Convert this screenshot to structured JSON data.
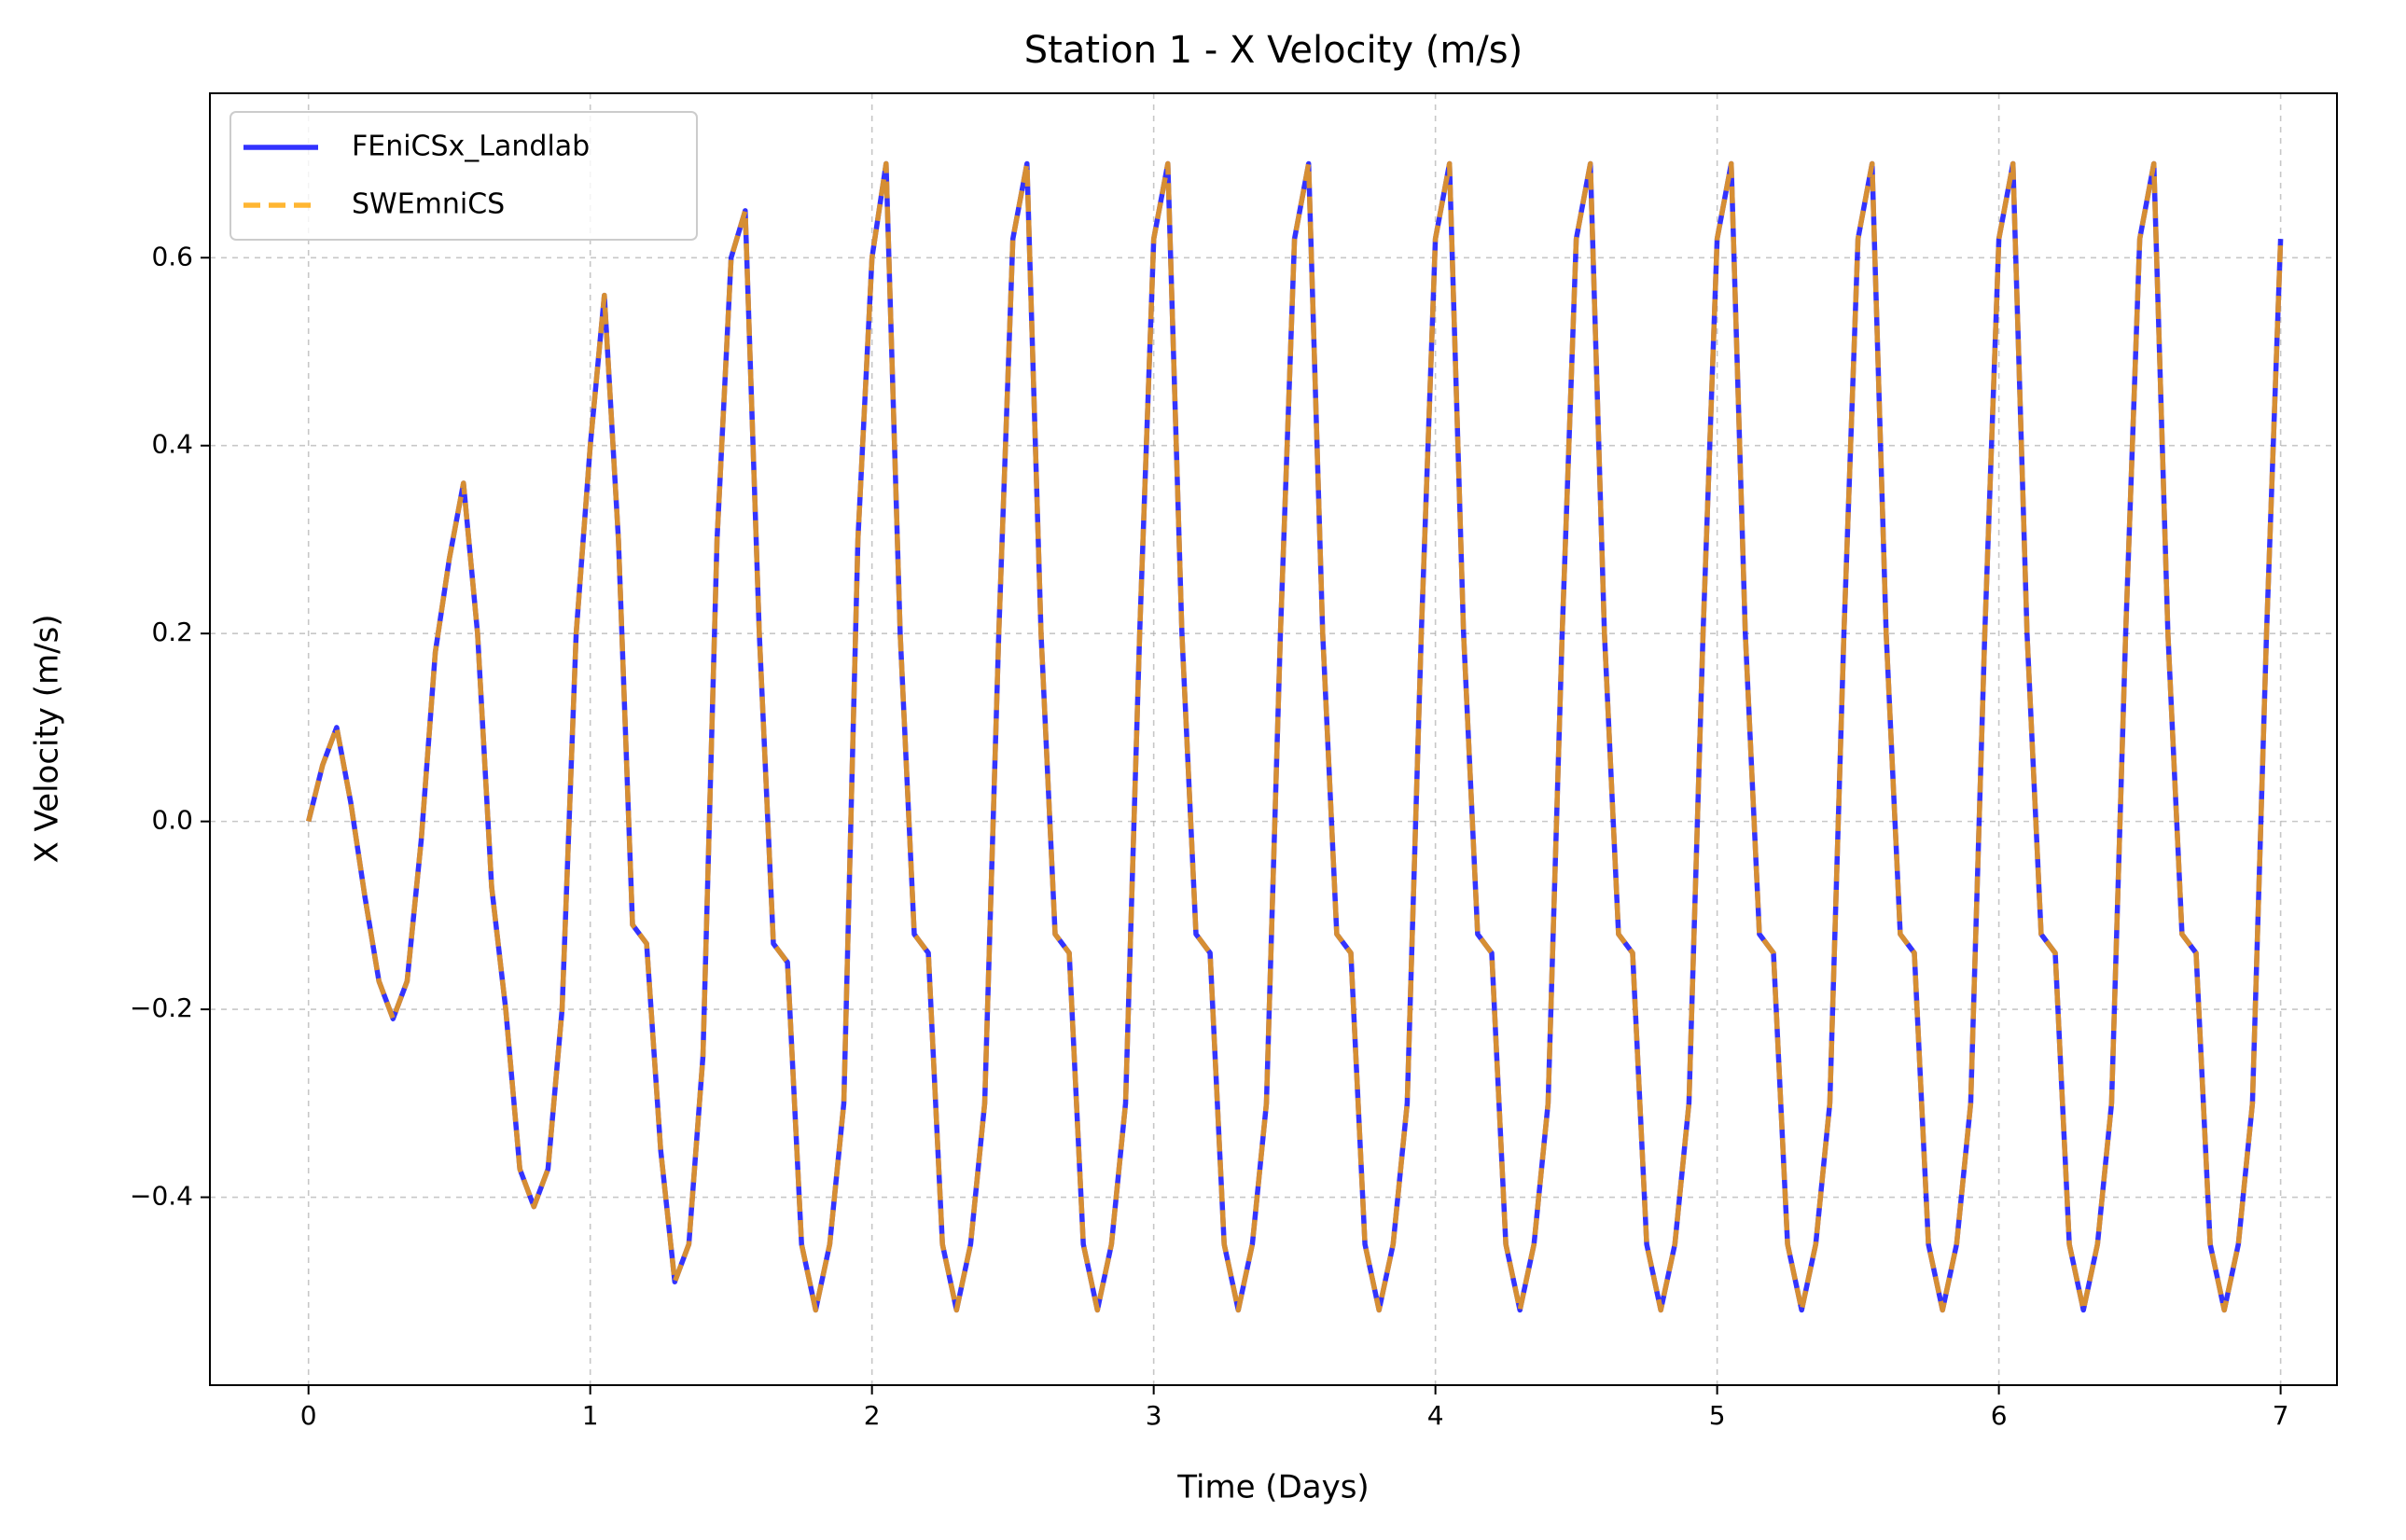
{
  "chart_data": {
    "type": "line",
    "title": "Station 1 - X Velocity (m/s)",
    "xlabel": "Time (Days)",
    "ylabel": "X Velocity (m/s)",
    "x": [
      0,
      0.05,
      0.1,
      0.15,
      0.2,
      0.25,
      0.3,
      0.35,
      0.4,
      0.45,
      0.5,
      0.55,
      0.6,
      0.65,
      0.7,
      0.75,
      0.8,
      0.85,
      0.9,
      0.95,
      1,
      1.05,
      1.1,
      1.15,
      1.2,
      1.25,
      1.3,
      1.35,
      1.4,
      1.45,
      1.5,
      1.55,
      1.6,
      1.65,
      1.7,
      1.75,
      1.8,
      1.85,
      1.9,
      1.95,
      2,
      2.05,
      2.1,
      2.15,
      2.2,
      2.25,
      2.3,
      2.35,
      2.4,
      2.45,
      2.5,
      2.55,
      2.6,
      2.65,
      2.7,
      2.75,
      2.8,
      2.85,
      2.9,
      2.95,
      3,
      3.05,
      3.1,
      3.15,
      3.2,
      3.25,
      3.3,
      3.35,
      3.4,
      3.45,
      3.5,
      3.55,
      3.6,
      3.65,
      3.7,
      3.75,
      3.8,
      3.85,
      3.9,
      3.95,
      4,
      4.05,
      4.1,
      4.15,
      4.2,
      4.25,
      4.3,
      4.35,
      4.4,
      4.45,
      4.5,
      4.55,
      4.6,
      4.65,
      4.7,
      4.75,
      4.8,
      4.85,
      4.9,
      4.95,
      5,
      5.05,
      5.1,
      5.15,
      5.2,
      5.25,
      5.3,
      5.35,
      5.4,
      5.45,
      5.5,
      5.55,
      5.6,
      5.65,
      5.7,
      5.75,
      5.8,
      5.85,
      5.9,
      5.95,
      6,
      6.05,
      6.1,
      6.15,
      6.2,
      6.25,
      6.3,
      6.35,
      6.4,
      6.45,
      6.5,
      6.55,
      6.6,
      6.65,
      6.7,
      6.75,
      6.8,
      6.85,
      6.9,
      6.95,
      7
    ],
    "series": [
      {
        "name": "FEniCSx_Landlab",
        "color": "#0000ff",
        "dashed": false,
        "values": [
          0,
          0.06,
          0.1,
          0.02,
          -0.08,
          -0.17,
          -0.21,
          -0.17,
          -0.02,
          0.18,
          0.28,
          0.36,
          0.2,
          -0.07,
          -0.2,
          -0.37,
          -0.41,
          -0.37,
          -0.2,
          0.2,
          0.4,
          0.56,
          0.3,
          -0.11,
          -0.13,
          -0.35,
          -0.49,
          -0.45,
          -0.25,
          0.3,
          0.6,
          0.65,
          0.2,
          -0.13,
          -0.15,
          -0.45,
          -0.52,
          -0.45,
          -0.3,
          0.3,
          0.6,
          0.7,
          0.2,
          -0.12,
          -0.14,
          -0.45,
          -0.52,
          -0.45,
          -0.3,
          0.2,
          0.62,
          0.7,
          0.2,
          -0.12,
          -0.14,
          -0.45,
          -0.52,
          -0.45,
          -0.3,
          0.2,
          0.62,
          0.7,
          0.2,
          -0.12,
          -0.14,
          -0.45,
          -0.52,
          -0.45,
          -0.3,
          0.2,
          0.62,
          0.7,
          0.2,
          -0.12,
          -0.14,
          -0.45,
          -0.52,
          -0.45,
          -0.3,
          0.2,
          0.62,
          0.7,
          0.2,
          -0.12,
          -0.14,
          -0.45,
          -0.52,
          -0.45,
          -0.3,
          0.2,
          0.62,
          0.7,
          0.2,
          -0.12,
          -0.14,
          -0.45,
          -0.52,
          -0.45,
          -0.3,
          0.2,
          0.62,
          0.7,
          0.2,
          -0.12,
          -0.14,
          -0.45,
          -0.52,
          -0.45,
          -0.3,
          0.2,
          0.62,
          0.7,
          0.2,
          -0.12,
          -0.14,
          -0.45,
          -0.52,
          -0.45,
          -0.3,
          0.2,
          0.62,
          0.7,
          0.2,
          -0.12,
          -0.14,
          -0.45,
          -0.52,
          -0.45,
          -0.3,
          0.2,
          0.62,
          0.7,
          0.2,
          -0.12,
          -0.14,
          -0.45,
          -0.52,
          -0.45,
          -0.3,
          0.2,
          0.62
        ]
      },
      {
        "name": "SWEmniCS",
        "color": "#ffa500",
        "dashed": true,
        "values": [
          0,
          0.06,
          0.1,
          0.02,
          -0.08,
          -0.17,
          -0.21,
          -0.17,
          -0.02,
          0.18,
          0.28,
          0.36,
          0.2,
          -0.07,
          -0.2,
          -0.37,
          -0.41,
          -0.37,
          -0.2,
          0.2,
          0.4,
          0.56,
          0.3,
          -0.11,
          -0.13,
          -0.35,
          -0.49,
          -0.45,
          -0.25,
          0.3,
          0.6,
          0.65,
          0.2,
          -0.13,
          -0.15,
          -0.45,
          -0.52,
          -0.45,
          -0.3,
          0.3,
          0.6,
          0.7,
          0.2,
          -0.12,
          -0.14,
          -0.45,
          -0.52,
          -0.45,
          -0.3,
          0.2,
          0.62,
          0.7,
          0.2,
          -0.12,
          -0.14,
          -0.45,
          -0.52,
          -0.45,
          -0.3,
          0.2,
          0.62,
          0.7,
          0.2,
          -0.12,
          -0.14,
          -0.45,
          -0.52,
          -0.45,
          -0.3,
          0.2,
          0.62,
          0.7,
          0.2,
          -0.12,
          -0.14,
          -0.45,
          -0.52,
          -0.45,
          -0.3,
          0.2,
          0.62,
          0.7,
          0.2,
          -0.12,
          -0.14,
          -0.45,
          -0.52,
          -0.45,
          -0.3,
          0.2,
          0.62,
          0.7,
          0.2,
          -0.12,
          -0.14,
          -0.45,
          -0.52,
          -0.45,
          -0.3,
          0.2,
          0.62,
          0.7,
          0.2,
          -0.12,
          -0.14,
          -0.45,
          -0.52,
          -0.45,
          -0.3,
          0.2,
          0.62,
          0.7,
          0.2,
          -0.12,
          -0.14,
          -0.45,
          -0.52,
          -0.45,
          -0.3,
          0.2,
          0.62,
          0.7,
          0.2,
          -0.12,
          -0.14,
          -0.45,
          -0.52,
          -0.45,
          -0.3,
          0.2,
          0.62,
          0.7,
          0.2,
          -0.12,
          -0.14,
          -0.45,
          -0.52,
          -0.45,
          -0.3,
          0.2,
          0.62
        ]
      }
    ],
    "xlim": [
      -0.35,
      7.2
    ],
    "ylim": [
      -0.6,
      0.775
    ],
    "xticks": [
      0,
      1,
      2,
      3,
      4,
      5,
      6,
      7
    ],
    "yticks": [
      {
        "value": -0.4,
        "label": "−0.4"
      },
      {
        "value": -0.2,
        "label": "−0.2"
      },
      {
        "value": 0,
        "label": "0.0"
      },
      0.2,
      0.4,
      0.6
    ],
    "grid": true,
    "legend": "upper left"
  }
}
